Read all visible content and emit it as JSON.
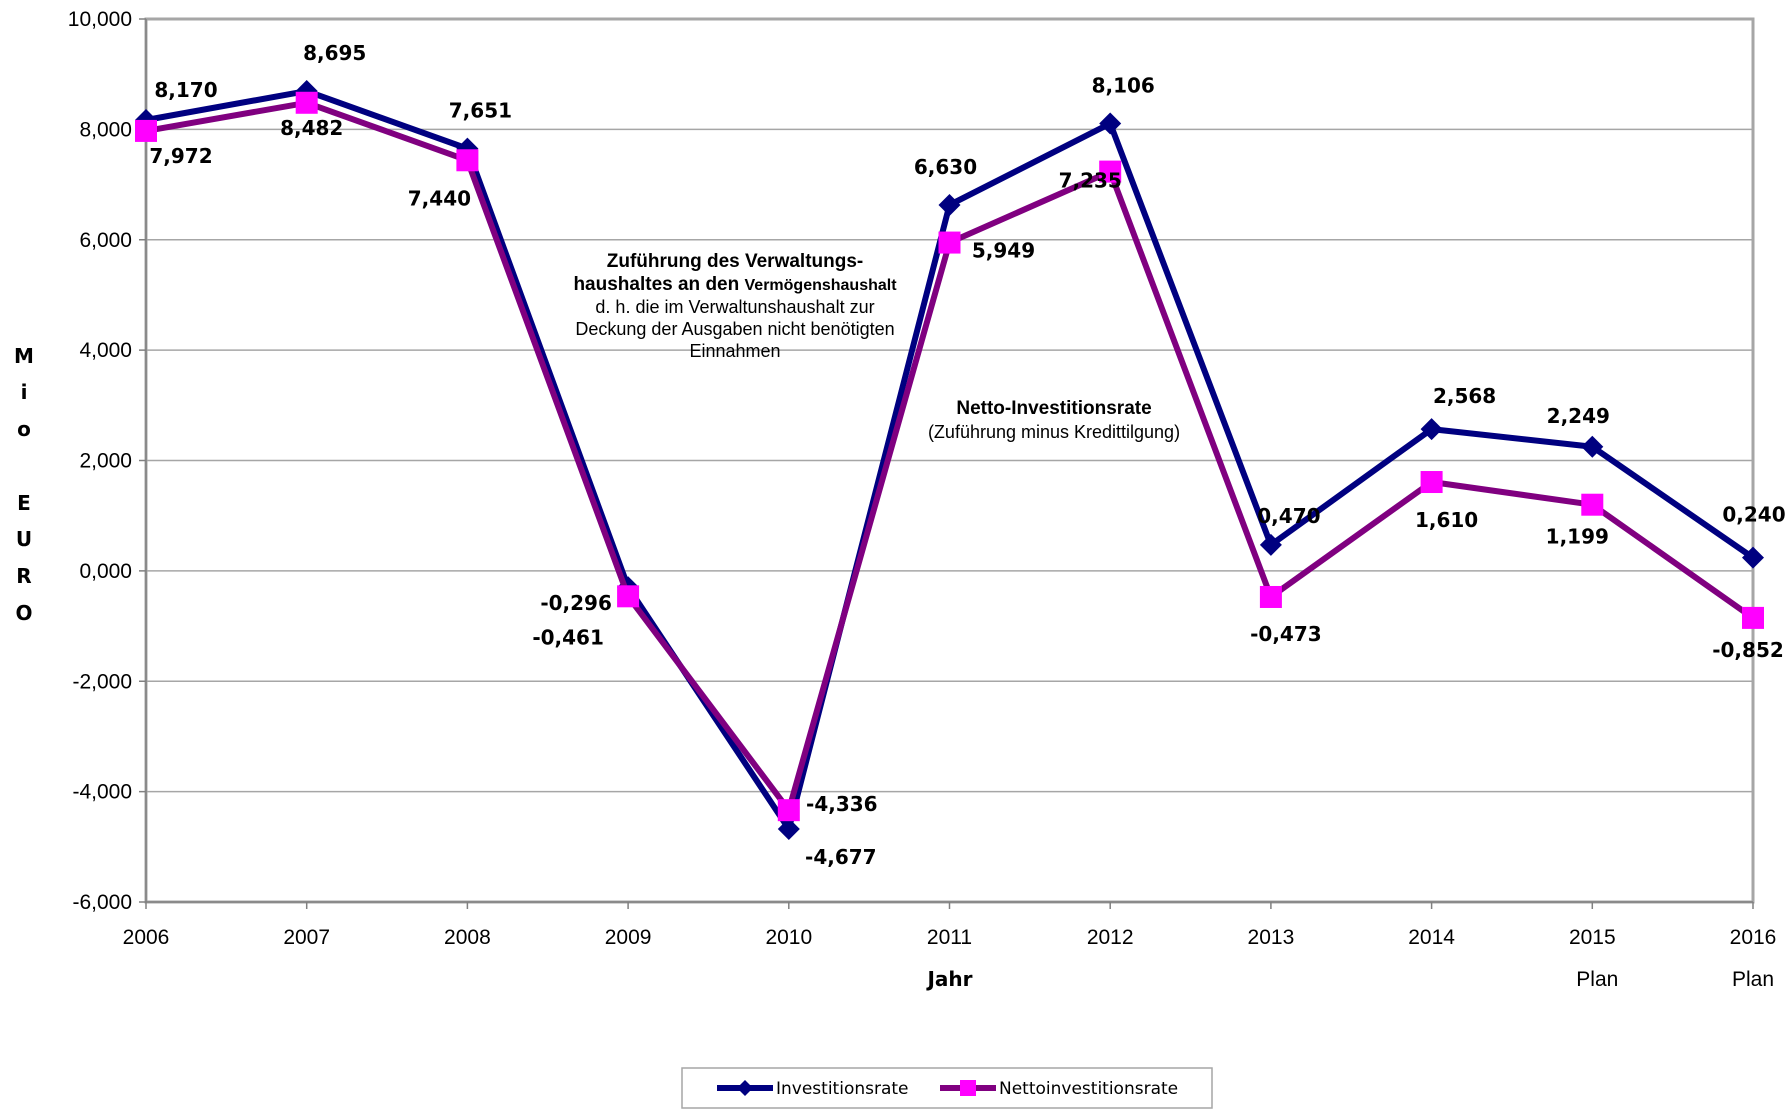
{
  "chart_data": {
    "type": "line",
    "categories": [
      "2006",
      "2007",
      "2008",
      "2009",
      "2010",
      "2011",
      "2012",
      "2013",
      "2014",
      "2015",
      "2016"
    ],
    "category_sublabels": [
      "",
      "",
      "",
      "",
      "",
      "",
      "",
      "",
      "",
      "Plan",
      "Plan"
    ],
    "series": [
      {
        "name": "Investitionsrate",
        "color": "#000080",
        "values": [
          8.17,
          8.695,
          7.651,
          -0.296,
          -4.677,
          6.63,
          8.106,
          0.47,
          2.568,
          2.249,
          0.24
        ],
        "labels": [
          "8,170",
          "8,695",
          "7,651",
          "-0,296",
          "-4,677",
          "6,630",
          "8,106",
          "0,470",
          "2,568",
          "2,249",
          "0,240"
        ]
      },
      {
        "name": "Nettoinvestitionsrate",
        "color": "#800080",
        "marker_color": "#ff00ff",
        "values": [
          7.972,
          8.482,
          7.44,
          -0.461,
          -4.336,
          5.949,
          7.235,
          -0.473,
          1.61,
          1.199,
          -0.852
        ],
        "labels": [
          "7,972",
          "8,482",
          "7,440",
          "-0,461",
          "-4,336",
          "5,949",
          "7,235",
          "-0,473",
          "1,610",
          "1,199",
          "-0,852"
        ]
      }
    ],
    "ylim": [
      -6,
      10
    ],
    "yticks": [
      10,
      8,
      6,
      4,
      2,
      0,
      -2,
      -4,
      -6
    ],
    "ytick_labels": [
      "10,000",
      "8,000",
      "6,000",
      "4,000",
      "2,000",
      "0,000",
      "-2,000",
      "-4,000",
      "-6,000"
    ],
    "xlabel": "Jahr",
    "ylabel_letters": [
      "M",
      "i",
      "o",
      "E",
      "U",
      "R",
      "O"
    ],
    "grid": "horizontal",
    "legend_position": "bottom-center",
    "annotations": {
      "zufuehrung": {
        "line1": "Zuführung des Verwaltungs-",
        "line2a": "haushaltes an den ",
        "line2b": "Vermögenshaushalt",
        "line3": "d. h. die im Verwaltunshaushalt  zur",
        "line4": "Deckung der Ausgaben nicht benötigten",
        "line5": "Einnahmen"
      },
      "netto": {
        "line1": "Netto-Investitionsrate",
        "line2": "(Zuführung minus Kredittilgung)"
      }
    }
  }
}
